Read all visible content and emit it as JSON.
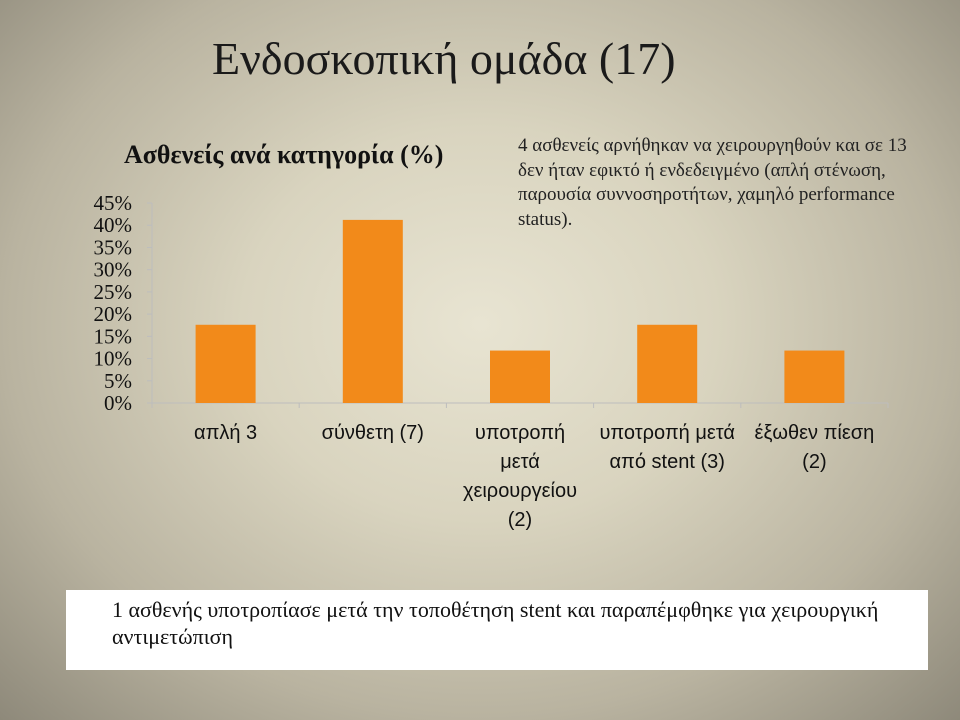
{
  "slide": {
    "title": "Ενδοσκοπική ομάδα (17)",
    "note": "4 ασθενείς αρνήθηκαν να χειρουργηθούν και σε 13 δεν ήταν εφικτό ή ενδεδειγμένο (απλή στένωση, παρουσία συννοσηροτήτων, χαμηλό performance status).",
    "footer": "1 ασθενής υποτροπίασε μετά την τοποθέτηση stent και παραπέμφθηκε για χειρουργική αντιμετώπιση"
  },
  "colors": {
    "bar": "#f28a1a",
    "axis": "#bdbdbd"
  },
  "chart_data": {
    "type": "bar",
    "title": "Ασθενείς ανά κατηγορία (%)",
    "categories": [
      [
        "απλή 3"
      ],
      [
        "σύνθετη (7)"
      ],
      [
        "υποτροπή",
        "μετά",
        "χειρουργείου",
        "(2)"
      ],
      [
        "υποτροπή μετά",
        "από stent (3)"
      ],
      [
        "έξωθεν πίεση",
        "(2)"
      ]
    ],
    "values": [
      17.6,
      41.2,
      11.8,
      17.6,
      11.8
    ],
    "ylim": [
      0,
      45
    ],
    "yticks": [
      0,
      5,
      10,
      15,
      20,
      25,
      30,
      35,
      40,
      45
    ],
    "ytick_labels": [
      "0%",
      "5%",
      "10%",
      "15%",
      "20%",
      "25%",
      "30%",
      "35%",
      "40%",
      "45%"
    ],
    "grid": false
  }
}
